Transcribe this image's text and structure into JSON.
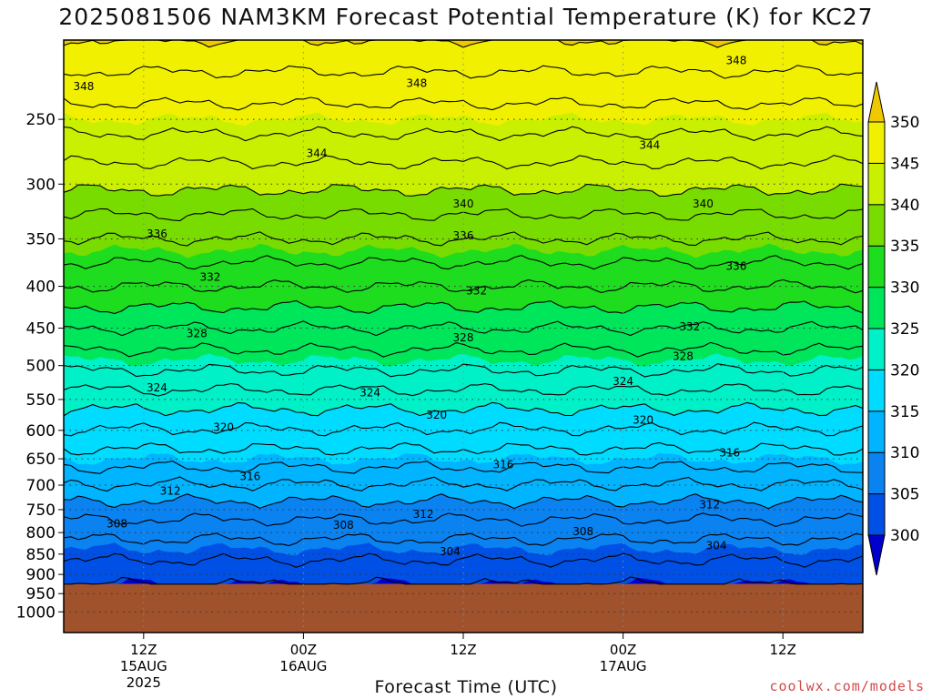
{
  "title": "2025081506 NAM3KM Forecast Potential Temperature (K) for KC27",
  "credit": "coolwx.com/models",
  "chart_data": {
    "type": "heatmap",
    "title": "2025081506 NAM3KM Forecast Potential Temperature (K) for KC27",
    "xlabel": "Forecast Time (UTC)",
    "ylabel": "",
    "y_scale": "log",
    "y_reversed": true,
    "ylim": [
      1060,
      200
    ],
    "y_ticks": [
      250,
      300,
      350,
      400,
      450,
      500,
      550,
      600,
      650,
      700,
      750,
      800,
      850,
      900,
      950,
      1000
    ],
    "x_ticks": [
      {
        "hour": 6,
        "lines": [
          "12Z",
          "15AUG",
          "2025"
        ]
      },
      {
        "hour": 18,
        "lines": [
          "00Z",
          "16AUG"
        ]
      },
      {
        "hour": 30,
        "lines": [
          "12Z"
        ]
      },
      {
        "hour": 42,
        "lines": [
          "00Z",
          "17AUG"
        ]
      },
      {
        "hour": 54,
        "lines": [
          "12Z"
        ]
      }
    ],
    "x_range_hours": [
      0,
      60
    ],
    "surface_pressure": 925,
    "colorbar": {
      "levels": [
        300,
        305,
        310,
        315,
        320,
        325,
        330,
        335,
        340,
        345,
        350
      ],
      "colors": [
        "#0000cc",
        "#0050e6",
        "#0a82f0",
        "#00b4ff",
        "#00dcff",
        "#00f0c8",
        "#00e65a",
        "#1edc1e",
        "#78dc00",
        "#c8f000",
        "#f0f000",
        "#f0c800"
      ]
    },
    "contour_interval": 2,
    "profile": [
      {
        "pressure": 925,
        "theta": 302
      },
      {
        "pressure": 850,
        "theta": 304.5
      },
      {
        "pressure": 750,
        "theta": 309
      },
      {
        "pressure": 650,
        "theta": 315
      },
      {
        "pressure": 550,
        "theta": 321
      },
      {
        "pressure": 500,
        "theta": 324.5
      },
      {
        "pressure": 450,
        "theta": 328
      },
      {
        "pressure": 400,
        "theta": 332
      },
      {
        "pressure": 350,
        "theta": 336
      },
      {
        "pressure": 300,
        "theta": 340.5
      },
      {
        "pressure": 250,
        "theta": 345
      },
      {
        "pressure": 200,
        "theta": 350
      }
    ],
    "contour_labels": [
      {
        "hour": 1.5,
        "pressure": 228,
        "value": "348"
      },
      {
        "hour": 26.5,
        "pressure": 226,
        "value": "348"
      },
      {
        "hour": 50.5,
        "pressure": 212,
        "value": "348"
      },
      {
        "hour": 19,
        "pressure": 275,
        "value": "344"
      },
      {
        "hour": 44,
        "pressure": 269,
        "value": "344"
      },
      {
        "hour": 30,
        "pressure": 317,
        "value": "340"
      },
      {
        "hour": 48,
        "pressure": 317,
        "value": "340"
      },
      {
        "hour": 7,
        "pressure": 345,
        "value": "336"
      },
      {
        "hour": 30,
        "pressure": 347,
        "value": "336"
      },
      {
        "hour": 50.5,
        "pressure": 378,
        "value": "336"
      },
      {
        "hour": 11,
        "pressure": 390,
        "value": "332"
      },
      {
        "hour": 31,
        "pressure": 405,
        "value": "332"
      },
      {
        "hour": 47,
        "pressure": 448,
        "value": "332"
      },
      {
        "hour": 10,
        "pressure": 457,
        "value": "328"
      },
      {
        "hour": 30,
        "pressure": 462,
        "value": "328"
      },
      {
        "hour": 46.5,
        "pressure": 487,
        "value": "328"
      },
      {
        "hour": 7,
        "pressure": 532,
        "value": "324"
      },
      {
        "hour": 23,
        "pressure": 540,
        "value": "324"
      },
      {
        "hour": 42,
        "pressure": 523,
        "value": "324"
      },
      {
        "hour": 12,
        "pressure": 595,
        "value": "320"
      },
      {
        "hour": 28,
        "pressure": 575,
        "value": "320"
      },
      {
        "hour": 43.5,
        "pressure": 583,
        "value": "320"
      },
      {
        "hour": 14,
        "pressure": 683,
        "value": "316"
      },
      {
        "hour": 33,
        "pressure": 661,
        "value": "316"
      },
      {
        "hour": 50,
        "pressure": 639,
        "value": "316"
      },
      {
        "hour": 8,
        "pressure": 712,
        "value": "312"
      },
      {
        "hour": 27,
        "pressure": 760,
        "value": "312"
      },
      {
        "hour": 48.5,
        "pressure": 740,
        "value": "312"
      },
      {
        "hour": 4,
        "pressure": 780,
        "value": "308"
      },
      {
        "hour": 21,
        "pressure": 783,
        "value": "308"
      },
      {
        "hour": 39,
        "pressure": 798,
        "value": "308"
      },
      {
        "hour": 29,
        "pressure": 844,
        "value": "304"
      },
      {
        "hour": 49,
        "pressure": 830,
        "value": "304"
      }
    ]
  }
}
